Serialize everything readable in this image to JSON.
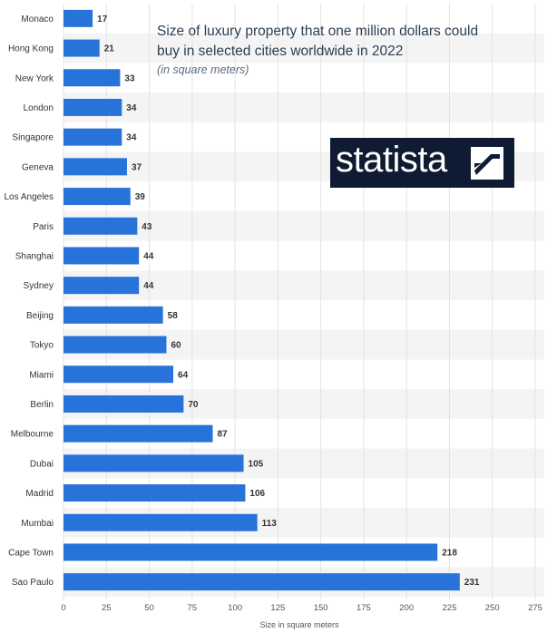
{
  "title": {
    "line1": "Size of luxury property that one million dollars could",
    "line2": "buy in selected cities worldwide in 2022",
    "subtitle": "(in square meters)"
  },
  "logo": {
    "text": "statista"
  },
  "colors": {
    "bar": "#2873d9",
    "grid": "#e3e3e3",
    "band": "#f4f4f4"
  },
  "chart_data": {
    "type": "bar",
    "orientation": "horizontal",
    "title": "Size of luxury property that one million dollars could buy in selected cities worldwide in 2022",
    "subtitle": "(in square meters)",
    "xlabel": "Size in square meters",
    "ylabel": "",
    "xlim": [
      0,
      275
    ],
    "xticks": [
      0,
      25,
      50,
      75,
      100,
      125,
      150,
      175,
      200,
      225,
      250,
      275
    ],
    "grid": true,
    "categories": [
      "Monaco",
      "Hong Kong",
      "New York",
      "London",
      "Singapore",
      "Geneva",
      "Los Angeles",
      "Paris",
      "Shanghai",
      "Sydney",
      "Beijing",
      "Tokyo",
      "Miami",
      "Berlin",
      "Melbourne",
      "Dubai",
      "Madrid",
      "Mumbai",
      "Cape Town",
      "Sao Paulo"
    ],
    "values": [
      17,
      21,
      33,
      34,
      34,
      37,
      39,
      43,
      44,
      44,
      58,
      60,
      64,
      70,
      87,
      105,
      106,
      113,
      218,
      231
    ]
  }
}
